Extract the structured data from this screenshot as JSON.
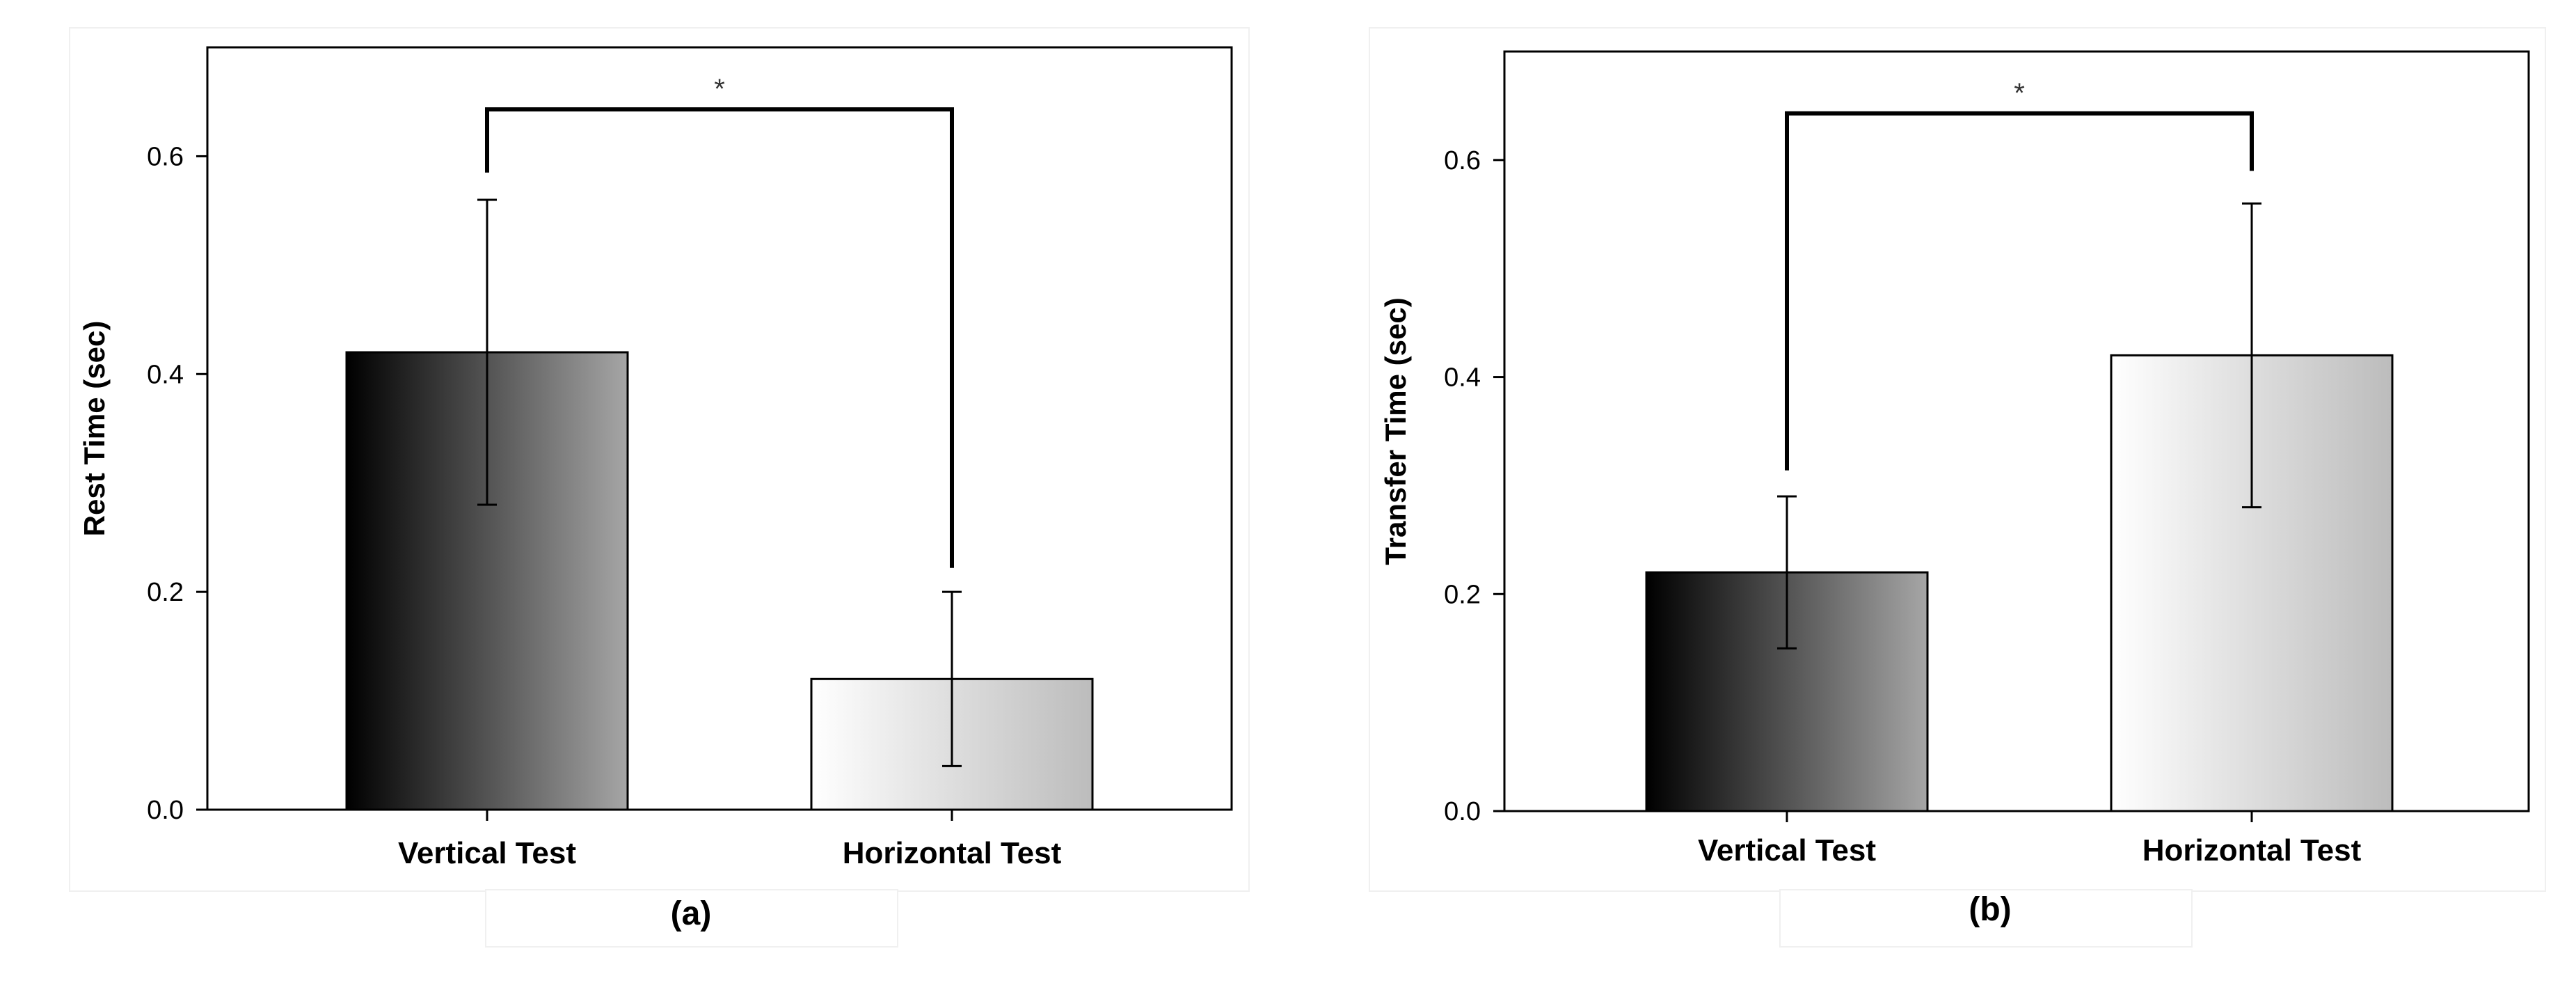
{
  "chart_data": [
    {
      "type": "bar",
      "panel_label": "(a)",
      "ylabel": "Rest Time (sec)",
      "xlabel": "",
      "categories": [
        "Vertical Test",
        "Horizontal Test"
      ],
      "values": [
        0.42,
        0.12
      ],
      "error": [
        0.14,
        0.08
      ],
      "ylim": [
        0,
        0.7
      ],
      "yticks": [
        0.0,
        0.2,
        0.4,
        0.6
      ],
      "ytick_labels": [
        "0.0",
        "0.2",
        "0.4",
        "0.6"
      ],
      "bar_fills": [
        "dark-gradient",
        "light-gradient"
      ],
      "significance": {
        "between": [
          0,
          1
        ],
        "label": "*",
        "line_y": 0.643,
        "left_end_y": 0.585,
        "right_end_y": 0.222
      },
      "grid": false
    },
    {
      "type": "bar",
      "panel_label": "(b)",
      "ylabel": "Transfer Time (sec)",
      "xlabel": "",
      "categories": [
        "Vertical Test",
        "Horizontal Test"
      ],
      "values": [
        0.22,
        0.42
      ],
      "error": [
        0.07,
        0.14
      ],
      "ylim": [
        0,
        0.7
      ],
      "yticks": [
        0.0,
        0.2,
        0.4,
        0.6
      ],
      "ytick_labels": [
        "0.0",
        "0.2",
        "0.4",
        "0.6"
      ],
      "bar_fills": [
        "dark-gradient",
        "light-gradient"
      ],
      "significance": {
        "between": [
          0,
          1
        ],
        "label": "*",
        "line_y": 0.643,
        "left_end_y": 0.314,
        "right_end_y": 0.59
      },
      "grid": false
    }
  ],
  "colors": {
    "axis": "#000000",
    "text": "#000000",
    "dark_gradient": [
      "#000000",
      "#a6a6a6"
    ],
    "light_gradient": [
      "#ffffff",
      "#bcbcbc"
    ]
  }
}
